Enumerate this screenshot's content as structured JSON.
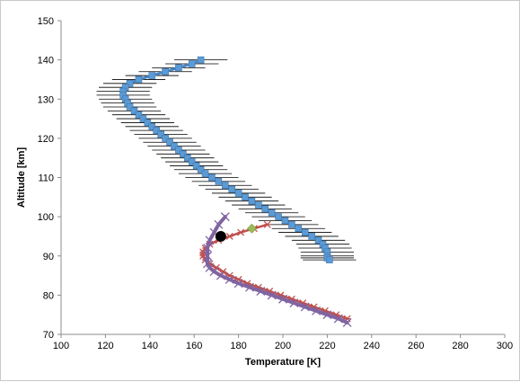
{
  "chart_data": {
    "type": "scatter",
    "title": "",
    "xlabel": "Temperature [K]",
    "ylabel": "Altitude [km]",
    "xlim": [
      100,
      300
    ],
    "ylim": [
      70,
      150
    ],
    "xticks": [
      100,
      120,
      140,
      160,
      180,
      200,
      220,
      240,
      260,
      280,
      300
    ],
    "yticks": [
      70,
      80,
      90,
      100,
      110,
      120,
      130,
      140,
      150
    ],
    "grid": false,
    "legend": "none",
    "series": [
      {
        "kind": "errorbar-line",
        "color": "#5b9bd5",
        "line_color": "#4a86c5",
        "errorbar_color": "#000000",
        "x": [
          163,
          159,
          153,
          147,
          141,
          135,
          131,
          129,
          128,
          128,
          129,
          130,
          131,
          133,
          135,
          137,
          139,
          141,
          143,
          145,
          147,
          149,
          151,
          153,
          155,
          157,
          159,
          161,
          163,
          165,
          168,
          171,
          174,
          177,
          180,
          183,
          186,
          189,
          192,
          195,
          198,
          201,
          204,
          207,
          210,
          213,
          216,
          218,
          219,
          220,
          220,
          220,
          221
        ],
        "y": [
          140,
          139,
          138,
          137,
          136,
          135,
          134,
          133,
          132,
          131,
          130,
          129,
          128,
          127,
          126,
          125,
          124,
          123,
          122,
          121,
          120,
          119,
          118,
          117,
          116,
          115,
          114,
          113,
          112,
          111,
          110,
          109,
          108,
          107,
          106,
          105,
          104,
          103,
          102,
          101,
          100,
          99,
          98,
          97,
          96,
          95,
          94,
          93,
          92,
          91,
          90,
          89.5,
          89
        ],
        "xerr": [
          12
        ]
      },
      {
        "kind": "marker-line",
        "marker": "asterisk",
        "color": "#c0504d",
        "x": [
          193,
          187,
          181,
          176,
          171,
          167,
          165,
          164,
          164,
          165,
          167,
          170,
          173,
          176,
          180,
          184,
          189,
          194,
          199,
          204,
          209,
          214,
          219,
          224,
          229
        ],
        "y": [
          98,
          97,
          96,
          95,
          94,
          93,
          92,
          91,
          90,
          89,
          88,
          87,
          86,
          85,
          84,
          83,
          82,
          81,
          80,
          79,
          78,
          77,
          76,
          75,
          74
        ]
      },
      {
        "kind": "marker-line",
        "marker": "x",
        "color": "#8064a2",
        "x": [
          174,
          171,
          169,
          167,
          166,
          166,
          166,
          167,
          169,
          172,
          176,
          180,
          185,
          190,
          195,
          200,
          205,
          210,
          215,
          220,
          225,
          229
        ],
        "y": [
          100,
          98,
          96,
          94,
          92,
          90,
          88,
          87,
          86,
          85,
          84,
          83,
          82,
          81,
          80,
          79,
          78,
          77,
          76,
          75,
          74,
          73
        ]
      },
      {
        "kind": "point",
        "marker": "circle",
        "color": "#000000",
        "x": [
          172
        ],
        "y": [
          95
        ]
      },
      {
        "kind": "point",
        "marker": "diamond",
        "color": "#9bbb59",
        "x": [
          186
        ],
        "y": [
          97
        ]
      }
    ]
  }
}
